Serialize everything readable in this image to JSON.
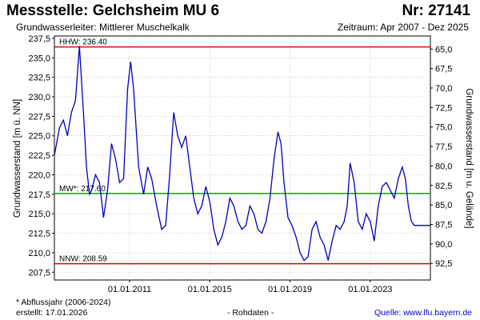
{
  "header": {
    "title": "Messstelle: Gelchsheim MU 6",
    "number": "Nr: 27141",
    "aquifer": "Grundwasserleiter:  Mittlerer Muschelkalk",
    "period": "Zeitraum: Apr 2007 - Dez 2025"
  },
  "footer": {
    "note": "* Abflussjahr (2006-2024)",
    "created": "erstellt:  17.01.2026",
    "raw": "- Rohdaten -",
    "source": "Quelle: www.lfu.bayern.de"
  },
  "colors": {
    "series": "#0000bb",
    "hhw": "#dd0000",
    "nnw": "#dd0000",
    "mw": "#00a000",
    "grid": "#c8c8c8",
    "frame": "#000000"
  },
  "chart_data": {
    "type": "line",
    "ylabel_left": "Grundwasserstand [m ü. NN]",
    "ylabel_right": "Grundwasserstand [m u. Gelände]",
    "ylim": [
      206.5,
      237.8
    ],
    "yticks_left": [
      "237,5",
      "235,0",
      "232,5",
      "230,0",
      "227,5",
      "225,0",
      "222,5",
      "220,0",
      "217,5",
      "215,0",
      "212,5",
      "210,0",
      "207,5"
    ],
    "yticks_left_values": [
      237.5,
      235.0,
      232.5,
      230.0,
      227.5,
      225.0,
      222.5,
      220.0,
      217.5,
      215.0,
      212.5,
      210.0,
      207.5
    ],
    "yticks_right": [
      "65,0",
      "67,5",
      "70,0",
      "72,5",
      "75,0",
      "77,5",
      "80,0",
      "82,5",
      "85,0",
      "87,5",
      "90,0",
      "92,5"
    ],
    "yticks_right_values": [
      236.13,
      233.63,
      231.13,
      228.63,
      226.13,
      223.63,
      221.13,
      218.63,
      216.13,
      213.63,
      211.13,
      208.63
    ],
    "xlim": [
      2007.25,
      2026.0
    ],
    "xticks": [
      "01.01.2011",
      "01.01.2015",
      "01.01.2019",
      "01.01.2023"
    ],
    "xticks_values": [
      2011.0,
      2015.0,
      2019.0,
      2023.0
    ],
    "reference_lines": [
      {
        "key": "hhw",
        "label": "HHW: 236.40",
        "value": 236.4
      },
      {
        "key": "mw",
        "label": "MW*: 217.60",
        "value": 217.6
      },
      {
        "key": "nnw",
        "label": "NNW: 208.59",
        "value": 208.59
      }
    ],
    "series": [
      {
        "x": [
          2007.25,
          2007.5,
          2007.7,
          2007.9,
          2008.1,
          2008.3,
          2008.5,
          2008.7,
          2008.85,
          2009.0,
          2009.1,
          2009.3,
          2009.5,
          2009.7,
          2009.9,
          2010.1,
          2010.3,
          2010.5,
          2010.7,
          2010.9,
          2011.05,
          2011.2,
          2011.45,
          2011.7,
          2011.9,
          2012.1,
          2012.35,
          2012.6,
          2012.8,
          2013.0,
          2013.2,
          2013.4,
          2013.6,
          2013.8,
          2014.0,
          2014.2,
          2014.4,
          2014.6,
          2014.8,
          2015.0,
          2015.2,
          2015.4,
          2015.6,
          2015.8,
          2016.0,
          2016.2,
          2016.4,
          2016.6,
          2016.8,
          2017.0,
          2017.2,
          2017.4,
          2017.6,
          2017.8,
          2018.0,
          2018.2,
          2018.4,
          2018.55,
          2018.7,
          2018.9,
          2019.1,
          2019.3,
          2019.5,
          2019.7,
          2019.9,
          2020.1,
          2020.3,
          2020.5,
          2020.7,
          2020.9,
          2021.1,
          2021.3,
          2021.5,
          2021.7,
          2021.85,
          2022.0,
          2022.2,
          2022.4,
          2022.6,
          2022.8,
          2023.0,
          2023.2,
          2023.4,
          2023.6,
          2023.8,
          2024.0,
          2024.2,
          2024.4,
          2024.6,
          2024.75,
          2024.9,
          2025.05,
          2025.2,
          2025.4,
          2025.6,
          2025.8,
          2026.0
        ],
        "y": [
          222.5,
          226.0,
          227.0,
          225.0,
          228.0,
          229.5,
          236.5,
          228.0,
          221.0,
          217.5,
          218.0,
          220.0,
          219.0,
          214.5,
          218.0,
          224.0,
          222.0,
          219.0,
          219.5,
          231.0,
          234.5,
          231.0,
          221.0,
          217.5,
          221.0,
          219.5,
          216.0,
          213.0,
          213.5,
          220.0,
          228.0,
          225.0,
          223.5,
          225.0,
          221.0,
          217.0,
          215.0,
          216.0,
          218.5,
          216.5,
          213.0,
          211.0,
          212.0,
          214.0,
          217.0,
          216.0,
          214.0,
          213.0,
          213.5,
          216.0,
          215.0,
          213.0,
          212.5,
          214.0,
          217.0,
          222.0,
          225.5,
          224.0,
          219.0,
          214.5,
          213.5,
          212.0,
          210.0,
          209.0,
          209.5,
          213.0,
          214.0,
          212.0,
          211.0,
          209.0,
          211.5,
          213.5,
          213.0,
          214.0,
          216.0,
          221.5,
          219.0,
          214.0,
          213.0,
          215.0,
          214.0,
          211.5,
          216.0,
          218.5,
          219.0,
          218.0,
          217.0,
          219.5,
          221.0,
          219.5,
          216.0,
          214.0,
          213.5,
          213.5,
          213.5,
          213.5,
          213.5
        ]
      }
    ]
  }
}
